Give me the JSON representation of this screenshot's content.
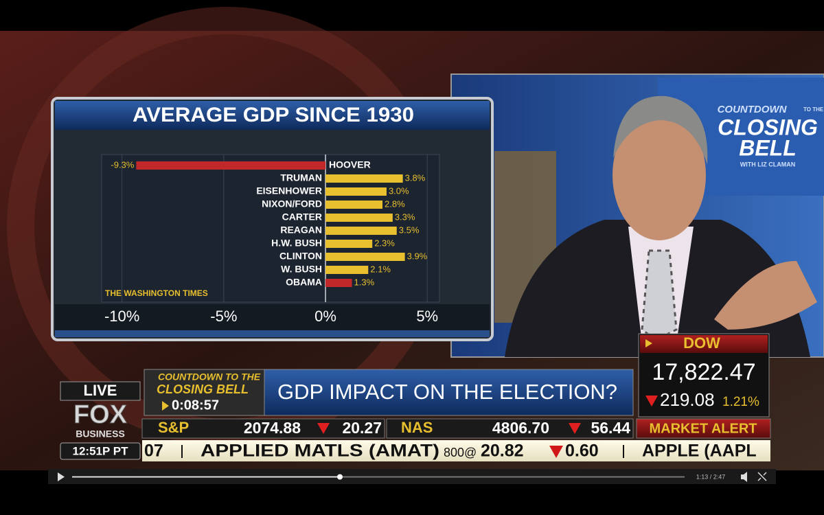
{
  "chart_data": {
    "type": "bar",
    "orientation": "horizontal",
    "title": "AVERAGE GDP SINCE 1930",
    "categories": [
      "HOOVER",
      "TRUMAN",
      "EISENHOWER",
      "NIXON/FORD",
      "CARTER",
      "REAGAN",
      "H.W. BUSH",
      "CLINTON",
      "W. BUSH",
      "OBAMA"
    ],
    "values": [
      -9.3,
      3.8,
      3.0,
      2.8,
      3.3,
      3.5,
      2.3,
      3.9,
      2.1,
      1.3
    ],
    "value_labels": [
      "-9.3%",
      "3.8%",
      "3.0%",
      "2.8%",
      "3.3%",
      "3.5%",
      "2.3%",
      "3.9%",
      "2.1%",
      "1.3%"
    ],
    "colors": [
      "#c0282a",
      "#e8bf2e",
      "#e8bf2e",
      "#e8bf2e",
      "#e8bf2e",
      "#e8bf2e",
      "#e8bf2e",
      "#e8bf2e",
      "#e8bf2e",
      "#c0282a"
    ],
    "xlim": [
      -11,
      5.6
    ],
    "xticks": [
      {
        "value": -10,
        "label": "-10%"
      },
      {
        "value": -5,
        "label": "-5%"
      },
      {
        "value": 0,
        "label": "0%"
      },
      {
        "value": 5,
        "label": "5%"
      }
    ],
    "grid": true,
    "source": "THE WASHINGTON TIMES"
  },
  "studio_screen": {
    "top": "COUNTDOWN",
    "small": "TO THE",
    "main1": "CLOSING",
    "main2": "BELL",
    "host": "WITH LIZ CLAMAN"
  },
  "lower_third": {
    "live": "LIVE",
    "network": "FOX",
    "network_sub": "BUSINESS",
    "clock": "12:51P PT",
    "show_line1": "COUNTDOWN TO THE",
    "show_line2": "CLOSING BELL",
    "countdown": "0:08:57",
    "headline": "GDP IMPACT ON THE ELECTION?"
  },
  "dow": {
    "label": "DOW",
    "value": "17,822.47",
    "change": "219.08",
    "percent": "1.21%"
  },
  "ticker": [
    {
      "label": "S&P",
      "value": "2074.88",
      "change": "20.27"
    },
    {
      "label": "NAS",
      "value": "4806.70",
      "change": "56.44"
    }
  ],
  "alert": "MARKET ALERT",
  "crawl": {
    "prefix": "07",
    "name": "APPLIED MATLS (AMAT)",
    "volume": "800@",
    "price": "20.82",
    "change": "0.60",
    "next": "APPLE (AAPL"
  },
  "player": {
    "time": "1:13 / 2:47"
  }
}
